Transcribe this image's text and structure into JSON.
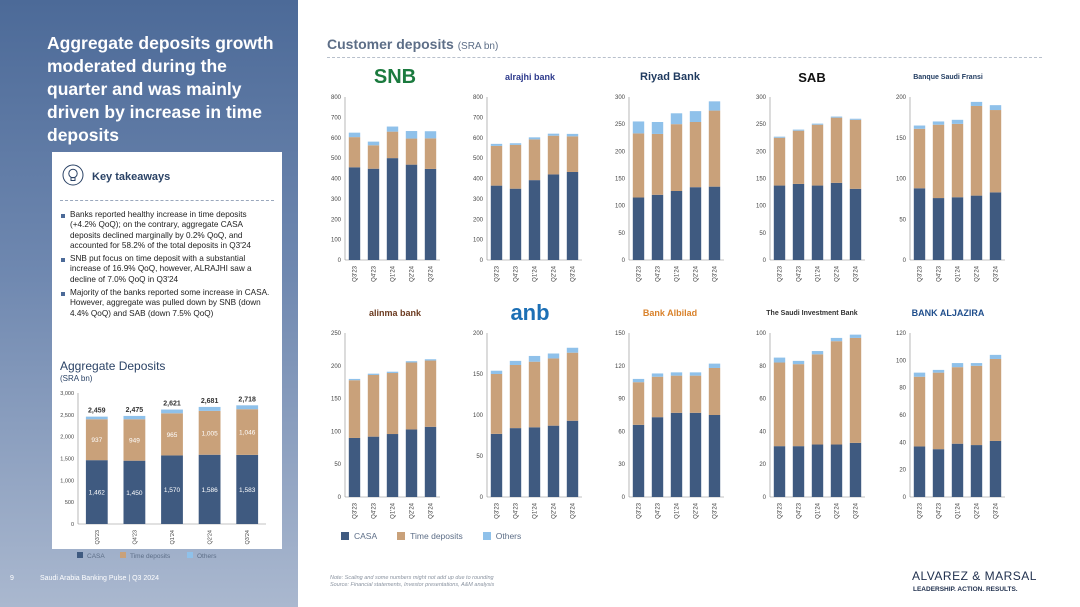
{
  "page_number": "9",
  "footer": "Saudi Arabia Banking Pulse | Q3 2024",
  "headline": "Aggregate deposits growth moderated during the quarter and was mainly driven by increase in time deposits",
  "key_takeaways": {
    "title": "Key takeaways",
    "bullets": [
      "Banks reported healthy increase in time deposits (+4.2% QoQ); on the contrary, aggregate CASA deposits declined marginally by 0.2% QoQ, and accounted for 58.2% of the total deposits in Q3'24",
      "SNB put focus on time deposit with a substantial increase of 16.9% QoQ, however, ALRAJHI saw a decline of 7.0% QoQ in Q3'24",
      "Majority of the banks reported some increase in CASA. However, aggregate was pulled down by SNB (down 4.4% QoQ) and SAB (down 7.5% QoQ)"
    ]
  },
  "aggregate": {
    "title": "Aggregate Deposits",
    "subtitle": "(SRA bn)"
  },
  "main_title": "Customer deposits",
  "main_title_unit": "(SRA bn)",
  "legend": [
    "CASA",
    "Time deposits",
    "Others"
  ],
  "colors": {
    "casa": "#3f5a80",
    "time": "#c9a17a",
    "others": "#8fc1ea",
    "axis": "#444444"
  },
  "note": "Note: Scaling and some numbers might not add up due to rounding",
  "source": "Source: Financial statements, Investor presentations, A&M analysis",
  "brand": {
    "name": "ALVAREZ & MARSAL",
    "tagline": "LEADERSHIP. ACTION. RESULTS."
  },
  "bank_logos": [
    {
      "text": "SNB",
      "color": "#1b7a3e"
    },
    {
      "text": "alrajhi bank",
      "color": "#2d3a8c"
    },
    {
      "text": "Riyad Bank",
      "color": "#1f3a5f"
    },
    {
      "text": "SAB",
      "color": "#111111"
    },
    {
      "text": "Banque Saudi Fransi",
      "color": "#1f3a5f"
    },
    {
      "text": "alinma bank",
      "color": "#6b3a1f"
    },
    {
      "text": "anb",
      "color": "#1c6fb5"
    },
    {
      "text": "Bank Albilad",
      "color": "#d9822b"
    },
    {
      "text": "The Saudi Investment Bank",
      "color": "#333333"
    },
    {
      "text": "BANK ALJAZIRA",
      "color": "#1f4e8c"
    }
  ],
  "chart_data": [
    {
      "type": "bar",
      "stacked": true,
      "title": "Aggregate Deposits",
      "categories": [
        "Q3'23",
        "Q4'23",
        "Q1'24",
        "Q2'24",
        "Q3'24"
      ],
      "ylim": [
        0,
        3000
      ],
      "yticks": [
        0,
        500,
        1000,
        1500,
        2000,
        2500,
        3000
      ],
      "series": [
        {
          "name": "CASA",
          "values": [
            1462,
            1450,
            1570,
            1586,
            1583
          ]
        },
        {
          "name": "Time deposits",
          "values": [
            937,
            949,
            965,
            1005,
            1046
          ]
        },
        {
          "name": "Others",
          "values": [
            60,
            76,
            86,
            90,
            89
          ]
        }
      ],
      "casa_labels": [
        "1,462",
        "1,450",
        "1,570",
        "1,586",
        "1,583"
      ],
      "time_labels": [
        "937",
        "949",
        "965",
        "1,005",
        "1,046"
      ],
      "totals": [
        "2,459",
        "2,475",
        "2,621",
        "2,681",
        "2,718"
      ]
    },
    {
      "type": "bar",
      "stacked": true,
      "title": "SNB",
      "categories": [
        "Q3'23",
        "Q4'23",
        "Q1'24",
        "Q2'24",
        "Q3'24"
      ],
      "ylim": [
        0,
        800
      ],
      "yticks": [
        0,
        100,
        200,
        300,
        400,
        500,
        600,
        700,
        800
      ],
      "series": [
        {
          "name": "CASA",
          "values": [
            455,
            448,
            500,
            468,
            447
          ]
        },
        {
          "name": "Time deposits",
          "values": [
            148,
            115,
            130,
            128,
            150
          ]
        },
        {
          "name": "Others",
          "values": [
            22,
            18,
            25,
            37,
            35
          ]
        }
      ]
    },
    {
      "type": "bar",
      "stacked": true,
      "title": "alrajhi bank",
      "categories": [
        "Q3'23",
        "Q4'23",
        "Q1'24",
        "Q2'24",
        "Q3'24"
      ],
      "ylim": [
        0,
        800
      ],
      "yticks": [
        0,
        100,
        200,
        300,
        400,
        500,
        600,
        700,
        800
      ],
      "series": [
        {
          "name": "CASA",
          "values": [
            365,
            350,
            392,
            420,
            432
          ]
        },
        {
          "name": "Time deposits",
          "values": [
            195,
            215,
            200,
            190,
            175
          ]
        },
        {
          "name": "Others",
          "values": [
            10,
            8,
            10,
            10,
            12
          ]
        }
      ]
    },
    {
      "type": "bar",
      "stacked": true,
      "title": "Riyad Bank",
      "categories": [
        "Q3'23",
        "Q4'23",
        "Q1'24",
        "Q2'24",
        "Q3'24"
      ],
      "ylim": [
        0,
        300
      ],
      "yticks": [
        0,
        50,
        100,
        150,
        200,
        250,
        300
      ],
      "series": [
        {
          "name": "CASA",
          "values": [
            115,
            120,
            127,
            134,
            135
          ]
        },
        {
          "name": "Time deposits",
          "values": [
            118,
            112,
            123,
            120,
            140
          ]
        },
        {
          "name": "Others",
          "values": [
            22,
            22,
            20,
            20,
            17
          ]
        }
      ]
    },
    {
      "type": "bar",
      "stacked": true,
      "title": "SAB",
      "categories": [
        "Q3'23",
        "Q4'23",
        "Q1'24",
        "Q2'24",
        "Q3'24"
      ],
      "ylim": [
        0,
        300
      ],
      "yticks": [
        0,
        50,
        100,
        150,
        200,
        250,
        300
      ],
      "series": [
        {
          "name": "CASA",
          "values": [
            137,
            140,
            137,
            142,
            131
          ]
        },
        {
          "name": "Time deposits",
          "values": [
            88,
            98,
            112,
            120,
            127
          ]
        },
        {
          "name": "Others",
          "values": [
            2,
            2,
            2,
            2,
            2
          ]
        }
      ]
    },
    {
      "type": "bar",
      "stacked": true,
      "title": "Banque Saudi Fransi",
      "categories": [
        "Q3'23",
        "Q4'23",
        "Q1'24",
        "Q2'24",
        "Q3'24"
      ],
      "ylim": [
        0,
        200
      ],
      "yticks": [
        0,
        50,
        100,
        150,
        200
      ],
      "series": [
        {
          "name": "CASA",
          "values": [
            88,
            76,
            77,
            79,
            83
          ]
        },
        {
          "name": "Time deposits",
          "values": [
            73,
            90,
            90,
            110,
            101
          ]
        },
        {
          "name": "Others",
          "values": [
            4,
            4,
            5,
            5,
            6
          ]
        }
      ]
    },
    {
      "type": "bar",
      "stacked": true,
      "title": "alinma bank",
      "categories": [
        "Q3'23",
        "Q4'23",
        "Q1'24",
        "Q2'24",
        "Q3'24"
      ],
      "ylim": [
        0,
        250
      ],
      "yticks": [
        0,
        50,
        100,
        150,
        200,
        250
      ],
      "series": [
        {
          "name": "CASA",
          "values": [
            90,
            92,
            96,
            103,
            107
          ]
        },
        {
          "name": "Time deposits",
          "values": [
            88,
            94,
            93,
            102,
            101
          ]
        },
        {
          "name": "Others",
          "values": [
            2,
            2,
            2,
            2,
            2
          ]
        }
      ]
    },
    {
      "type": "bar",
      "stacked": true,
      "title": "anb",
      "categories": [
        "Q3'23",
        "Q4'23",
        "Q1'24",
        "Q2'24",
        "Q3'24"
      ],
      "ylim": [
        0,
        200
      ],
      "yticks": [
        0,
        50,
        100,
        150,
        200
      ],
      "series": [
        {
          "name": "CASA",
          "values": [
            77,
            84,
            85,
            87,
            93
          ]
        },
        {
          "name": "Time deposits",
          "values": [
            73,
            77,
            80,
            82,
            83
          ]
        },
        {
          "name": "Others",
          "values": [
            4,
            5,
            7,
            6,
            6
          ]
        }
      ]
    },
    {
      "type": "bar",
      "stacked": true,
      "title": "Bank Albilad",
      "categories": [
        "Q3'23",
        "Q4'23",
        "Q1'24",
        "Q2'24",
        "Q3'24"
      ],
      "ylim": [
        0,
        150
      ],
      "yticks": [
        0,
        30,
        60,
        90,
        120,
        150
      ],
      "series": [
        {
          "name": "CASA",
          "values": [
            66,
            73,
            77,
            77,
            75
          ]
        },
        {
          "name": "Time deposits",
          "values": [
            39,
            37,
            34,
            34,
            43
          ]
        },
        {
          "name": "Others",
          "values": [
            3,
            3,
            3,
            3,
            4
          ]
        }
      ]
    },
    {
      "type": "bar",
      "stacked": true,
      "title": "The Saudi Investment Bank",
      "categories": [
        "Q3'23",
        "Q4'23",
        "Q1'24",
        "Q2'24",
        "Q3'24"
      ],
      "ylim": [
        0,
        100
      ],
      "yticks": [
        0,
        20,
        40,
        60,
        80,
        100
      ],
      "series": [
        {
          "name": "CASA",
          "values": [
            31,
            31,
            32,
            32,
            33
          ]
        },
        {
          "name": "Time deposits",
          "values": [
            51,
            50,
            55,
            63,
            64
          ]
        },
        {
          "name": "Others",
          "values": [
            3,
            2,
            2,
            2,
            2
          ]
        }
      ]
    },
    {
      "type": "bar",
      "stacked": true,
      "title": "BANK ALJAZIRA",
      "categories": [
        "Q3'23",
        "Q4'23",
        "Q1'24",
        "Q2'24",
        "Q3'24"
      ],
      "ylim": [
        0,
        120
      ],
      "yticks": [
        0,
        20,
        40,
        60,
        80,
        100,
        120
      ],
      "series": [
        {
          "name": "CASA",
          "values": [
            37,
            35,
            39,
            38,
            41
          ]
        },
        {
          "name": "Time deposits",
          "values": [
            51,
            56,
            56,
            58,
            60
          ]
        },
        {
          "name": "Others",
          "values": [
            3,
            2,
            3,
            2,
            3
          ]
        }
      ]
    }
  ]
}
